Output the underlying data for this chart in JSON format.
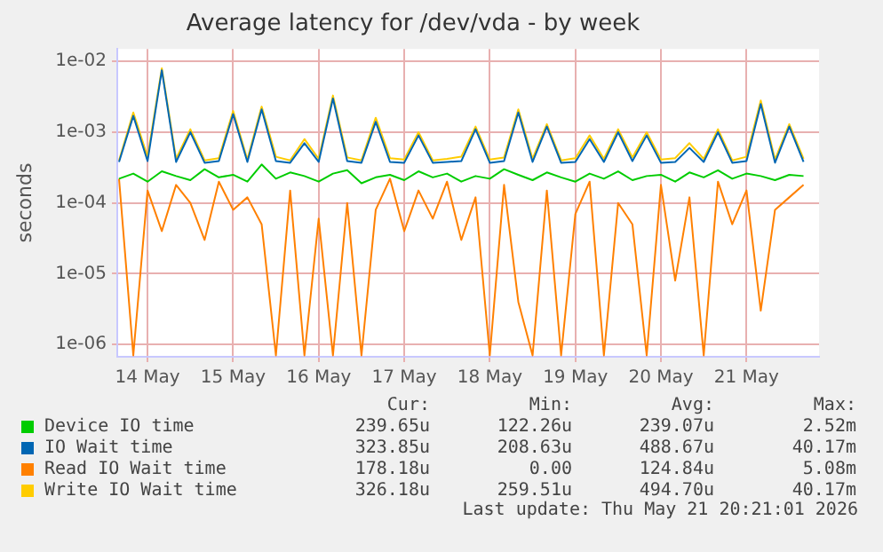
{
  "chart_data": {
    "type": "line",
    "title": "Average latency for /dev/vda - by week",
    "ylabel": "seconds",
    "log": "y",
    "grid": true,
    "legend": "bottom",
    "marker": "none",
    "line_style": "solid",
    "xlim": [
      "2026-05-13T15:30",
      "2026-05-21T20:21"
    ],
    "xticks": [
      {
        "value": "2026-05-14",
        "label": "14 May"
      },
      {
        "value": "2026-05-15",
        "label": "15 May"
      },
      {
        "value": "2026-05-16",
        "label": "16 May"
      },
      {
        "value": "2026-05-17",
        "label": "17 May"
      },
      {
        "value": "2026-05-18",
        "label": "18 May"
      },
      {
        "value": "2026-05-19",
        "label": "19 May"
      },
      {
        "value": "2026-05-20",
        "label": "20 May"
      },
      {
        "value": "2026-05-21",
        "label": "21 May"
      }
    ],
    "ylim": [
      6.7e-07,
      0.015
    ],
    "yticks": [
      {
        "value": 1e-06,
        "label": "1e-06"
      },
      {
        "value": 1e-05,
        "label": "1e-05"
      },
      {
        "value": 0.0001,
        "label": "1e-04"
      },
      {
        "value": 0.001,
        "label": "1e-03"
      },
      {
        "value": 0.01,
        "label": "1e-02"
      }
    ],
    "x": [
      "2026-05-13T16:00",
      "2026-05-13T20:00",
      "2026-05-14T00:00",
      "2026-05-14T04:00",
      "2026-05-14T08:00",
      "2026-05-14T12:00",
      "2026-05-14T16:00",
      "2026-05-14T20:00",
      "2026-05-15T00:00",
      "2026-05-15T04:00",
      "2026-05-15T08:00",
      "2026-05-15T12:00",
      "2026-05-15T16:00",
      "2026-05-15T20:00",
      "2026-05-16T00:00",
      "2026-05-16T04:00",
      "2026-05-16T08:00",
      "2026-05-16T12:00",
      "2026-05-16T16:00",
      "2026-05-16T20:00",
      "2026-05-17T00:00",
      "2026-05-17T04:00",
      "2026-05-17T08:00",
      "2026-05-17T12:00",
      "2026-05-17T16:00",
      "2026-05-17T20:00",
      "2026-05-18T00:00",
      "2026-05-18T04:00",
      "2026-05-18T08:00",
      "2026-05-18T12:00",
      "2026-05-18T16:00",
      "2026-05-18T20:00",
      "2026-05-19T00:00",
      "2026-05-19T04:00",
      "2026-05-19T08:00",
      "2026-05-19T12:00",
      "2026-05-19T16:00",
      "2026-05-19T20:00",
      "2026-05-20T00:00",
      "2026-05-20T04:00",
      "2026-05-20T08:00",
      "2026-05-20T12:00",
      "2026-05-20T16:00",
      "2026-05-20T20:00",
      "2026-05-21T00:00",
      "2026-05-21T04:00",
      "2026-05-21T08:00",
      "2026-05-21T12:00",
      "2026-05-21T16:00"
    ],
    "series": [
      {
        "name": "Device IO time",
        "color": "#00cc00",
        "values": [
          0.00022,
          0.00026,
          0.0002,
          0.00028,
          0.00024,
          0.00021,
          0.0003,
          0.00023,
          0.00025,
          0.0002,
          0.00035,
          0.00022,
          0.00027,
          0.00024,
          0.0002,
          0.00026,
          0.00029,
          0.00019,
          0.00023,
          0.00025,
          0.00021,
          0.00028,
          0.00023,
          0.00026,
          0.0002,
          0.00024,
          0.00022,
          0.0003,
          0.00025,
          0.00021,
          0.00027,
          0.00023,
          0.0002,
          0.00026,
          0.00022,
          0.00028,
          0.00021,
          0.00024,
          0.00025,
          0.0002,
          0.00027,
          0.00023,
          0.00029,
          0.00022,
          0.00026,
          0.00024,
          0.00021,
          0.00025,
          0.00024
        ]
      },
      {
        "name": "IO Wait time",
        "color": "#0066b3",
        "values": [
          0.00038,
          0.0017,
          0.00039,
          0.0075,
          0.00038,
          0.001,
          0.00037,
          0.00039,
          0.0018,
          0.00038,
          0.0021,
          0.00039,
          0.00037,
          0.0007,
          0.00038,
          0.003,
          0.00039,
          0.00037,
          0.0014,
          0.00038,
          0.00037,
          0.0009,
          0.00037,
          0.00038,
          0.00039,
          0.0011,
          0.00037,
          0.00039,
          0.0019,
          0.00038,
          0.0012,
          0.00037,
          0.00038,
          0.0008,
          0.00038,
          0.001,
          0.00039,
          0.0009,
          0.00037,
          0.00038,
          0.0006,
          0.00038,
          0.001,
          0.00037,
          0.00039,
          0.0025,
          0.00037,
          0.0012,
          0.00038
        ]
      },
      {
        "name": "Read IO Wait time",
        "color": "#ff8000",
        "values": [
          0.00022,
          7e-07,
          0.00015,
          4e-05,
          0.00018,
          0.0001,
          3e-05,
          0.0002,
          8e-05,
          0.00012,
          5e-05,
          7e-07,
          0.00015,
          7e-07,
          6e-05,
          7e-07,
          0.0001,
          7e-07,
          8e-05,
          0.00022,
          4e-05,
          0.00015,
          6e-05,
          0.0002,
          3e-05,
          0.00012,
          7e-07,
          0.00018,
          4e-06,
          7e-07,
          0.00015,
          7e-07,
          7e-05,
          0.0002,
          7e-07,
          0.0001,
          5e-05,
          7e-07,
          0.00018,
          8e-06,
          0.00012,
          7e-07,
          0.0002,
          5e-05,
          0.00015,
          3e-06,
          8e-05,
          0.00012,
          0.00018
        ]
      },
      {
        "name": "Write IO Wait time",
        "color": "#ffcc00",
        "values": [
          0.0004,
          0.0019,
          0.00045,
          0.008,
          0.00042,
          0.0011,
          0.0004,
          0.00043,
          0.002,
          0.00041,
          0.0023,
          0.00045,
          0.0004,
          0.0008,
          0.00042,
          0.0033,
          0.00044,
          0.0004,
          0.0016,
          0.00043,
          0.00041,
          0.001,
          0.0004,
          0.00042,
          0.00045,
          0.0012,
          0.00041,
          0.00044,
          0.0021,
          0.00042,
          0.0013,
          0.0004,
          0.00043,
          0.0009,
          0.00042,
          0.0011,
          0.00044,
          0.001,
          0.00041,
          0.00043,
          0.0007,
          0.00042,
          0.0011,
          0.0004,
          0.00045,
          0.0028,
          0.00041,
          0.0013,
          0.00042
        ]
      }
    ],
    "annotations": [
      "Cur:",
      "Min:",
      "Avg:",
      "Max:",
      "239.65u",
      "122.26u",
      "239.07u",
      "2.52m",
      "323.85u",
      "208.63u",
      "488.67u",
      "40.17m",
      "178.18u",
      "0.00",
      "124.84u",
      "5.08m",
      "326.18u",
      "259.51u",
      "494.70u",
      "40.17m",
      "Last update: Thu May 21 20:21:01 2026"
    ]
  }
}
